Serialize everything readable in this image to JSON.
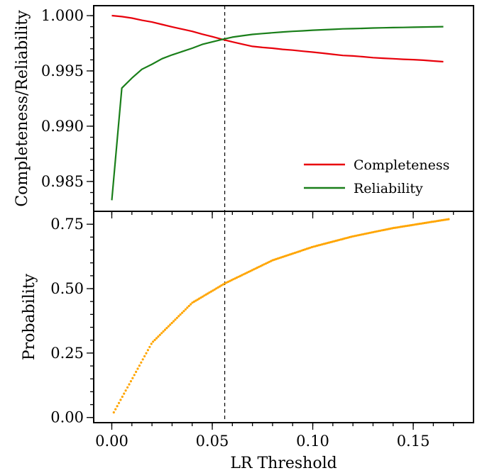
{
  "chart_data": [
    {
      "type": "line",
      "ylabel": "Completeness/Reliability",
      "xlim": [
        -0.009,
        0.18
      ],
      "ylim": [
        0.9823,
        1.0009
      ],
      "yticks": [
        {
          "value": 0.985,
          "label": "0.985"
        },
        {
          "value": 0.99,
          "label": "0.990"
        },
        {
          "value": 0.995,
          "label": "0.995"
        },
        {
          "value": 1.0,
          "label": "1.000"
        }
      ],
      "y_minor_step": 0.001,
      "x_minor_step": 0.01,
      "threshold_x": 0.0562,
      "legend_position": "lower-right",
      "series": [
        {
          "name": "Completeness",
          "color": "#e8000b",
          "x": [
            0.0,
            0.005,
            0.01,
            0.015,
            0.02,
            0.025,
            0.03,
            0.035,
            0.04,
            0.045,
            0.05,
            0.055,
            0.06,
            0.065,
            0.07,
            0.075,
            0.08,
            0.085,
            0.09,
            0.095,
            0.1,
            0.105,
            0.11,
            0.115,
            0.12,
            0.125,
            0.13,
            0.135,
            0.14,
            0.145,
            0.15,
            0.155,
            0.16,
            0.165
          ],
          "values": [
            1.0,
            0.99991,
            0.99978,
            0.99958,
            0.99942,
            0.9992,
            0.99898,
            0.99878,
            0.99858,
            0.99832,
            0.9981,
            0.99785,
            0.99762,
            0.99742,
            0.99722,
            0.99712,
            0.99705,
            0.99695,
            0.99688,
            0.99678,
            0.9967,
            0.9966,
            0.9965,
            0.9964,
            0.99635,
            0.99628,
            0.9962,
            0.99615,
            0.9961,
            0.99605,
            0.99602,
            0.99597,
            0.9959,
            0.99583
          ]
        },
        {
          "name": "Reliability",
          "color": "#1a7f1a",
          "x": [
            0.0,
            0.005,
            0.01,
            0.015,
            0.02,
            0.025,
            0.03,
            0.035,
            0.04,
            0.045,
            0.05,
            0.055,
            0.06,
            0.065,
            0.07,
            0.075,
            0.08,
            0.085,
            0.09,
            0.095,
            0.1,
            0.105,
            0.11,
            0.115,
            0.12,
            0.125,
            0.13,
            0.135,
            0.14,
            0.145,
            0.15,
            0.155,
            0.16,
            0.165
          ],
          "values": [
            0.9833,
            0.99345,
            0.99435,
            0.99515,
            0.9956,
            0.9961,
            0.99645,
            0.99675,
            0.99705,
            0.9974,
            0.99762,
            0.99785,
            0.99805,
            0.99818,
            0.9983,
            0.99838,
            0.99845,
            0.99852,
            0.99858,
            0.99862,
            0.99868,
            0.99872,
            0.99876,
            0.9988,
            0.99882,
            0.99885,
            0.99888,
            0.9989,
            0.99892,
            0.99893,
            0.99895,
            0.99897,
            0.99898,
            0.999
          ]
        }
      ]
    },
    {
      "type": "scatter",
      "xlabel": "LR Threshold",
      "ylabel": "Probability",
      "xlim": [
        -0.009,
        0.18
      ],
      "ylim": [
        -0.02,
        0.8
      ],
      "xticks": [
        {
          "value": 0.0,
          "label": "0.00"
        },
        {
          "value": 0.05,
          "label": "0.05"
        },
        {
          "value": 0.1,
          "label": "0.10"
        },
        {
          "value": 0.15,
          "label": "0.15"
        }
      ],
      "yticks": [
        {
          "value": 0.0,
          "label": "0.00"
        },
        {
          "value": 0.25,
          "label": "0.25"
        },
        {
          "value": 0.5,
          "label": "0.50"
        },
        {
          "value": 0.75,
          "label": "0.75"
        }
      ],
      "y_minor_step": 0.05,
      "x_minor_step": 0.01,
      "threshold_x": 0.0562,
      "series": [
        {
          "color": "#ffa500",
          "x": [
            0.001,
            0.02,
            0.04,
            0.0562,
            0.08,
            0.1,
            0.12,
            0.14,
            0.16,
            0.168
          ],
          "values": [
            0.02,
            0.29,
            0.445,
            0.52,
            0.61,
            0.662,
            0.703,
            0.735,
            0.76,
            0.77
          ]
        }
      ]
    }
  ]
}
